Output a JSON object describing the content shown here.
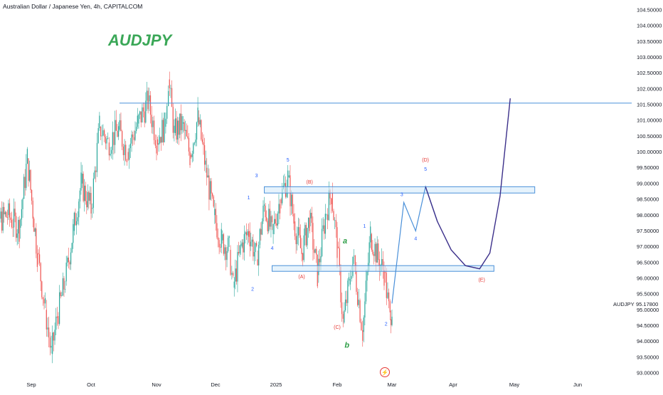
{
  "header": {
    "title": "Australian Dollar / Japanese Yen, 4h, CAPITALCOM"
  },
  "watermark": "AUDJPY",
  "current_price": {
    "symbol": "AUDJPY",
    "value": "95.17800"
  },
  "brand_icon": "lightning-bolt-icon",
  "colors": {
    "up": "#26a69a",
    "down": "#ef5350",
    "projection_blue": "#4a90d9",
    "projection_curve": "#3b2f8a",
    "level_line": "#4a90d9",
    "zone_fill": "#d6ebfa",
    "wave_blue": "#2962ff",
    "wave_red": "#e53935",
    "wave_green": "#2e9e47"
  },
  "chart_data": {
    "type": "line",
    "title": "Australian Dollar / Japanese Yen, 4h, CAPITALCOM",
    "price_axis": {
      "ticks": [
        "104.50000",
        "104.00000",
        "103.50000",
        "103.00000",
        "102.50000",
        "102.00000",
        "101.50000",
        "101.00000",
        "100.50000",
        "100.00000",
        "99.50000",
        "99.00000",
        "98.50000",
        "98.00000",
        "97.50000",
        "97.00000",
        "96.50000",
        "96.00000",
        "95.50000",
        "95.00000",
        "94.50000",
        "94.00000",
        "93.50000",
        "93.00000"
      ],
      "range": [
        93.0,
        104.5
      ]
    },
    "time_axis": {
      "ticks": [
        "Sep",
        "Oct",
        "Nov",
        "Dec",
        "2025",
        "Feb",
        "Mar",
        "Apr",
        "May",
        "Jun"
      ]
    },
    "series": [
      {
        "name": "AUDJPY",
        "values": [
          {
            "date": "2024-08-06",
            "price": 98.7
          },
          {
            "date": "2024-08-10",
            "price": 98.3
          },
          {
            "date": "2024-08-15",
            "price": 97.8
          },
          {
            "date": "2024-08-20",
            "price": 98.0
          },
          {
            "date": "2024-08-26",
            "price": 97.6
          },
          {
            "date": "2024-08-30",
            "price": 99.8
          },
          {
            "date": "2024-09-04",
            "price": 96.8
          },
          {
            "date": "2024-09-08",
            "price": 95.0
          },
          {
            "date": "2024-09-11",
            "price": 93.6
          },
          {
            "date": "2024-09-14",
            "price": 94.8
          },
          {
            "date": "2024-09-18",
            "price": 95.9
          },
          {
            "date": "2024-09-22",
            "price": 97.5
          },
          {
            "date": "2024-09-26",
            "price": 99.0
          },
          {
            "date": "2024-10-01",
            "price": 98.2
          },
          {
            "date": "2024-10-05",
            "price": 100.8
          },
          {
            "date": "2024-10-09",
            "price": 100.3
          },
          {
            "date": "2024-10-14",
            "price": 100.7
          },
          {
            "date": "2024-10-18",
            "price": 100.0
          },
          {
            "date": "2024-10-23",
            "price": 100.9
          },
          {
            "date": "2024-10-28",
            "price": 101.6
          },
          {
            "date": "2024-11-01",
            "price": 100.4
          },
          {
            "date": "2024-11-05",
            "price": 100.8
          },
          {
            "date": "2024-11-07",
            "price": 102.3
          },
          {
            "date": "2024-11-10",
            "price": 100.6
          },
          {
            "date": "2024-11-14",
            "price": 100.9
          },
          {
            "date": "2024-11-18",
            "price": 99.9
          },
          {
            "date": "2024-11-22",
            "price": 101.1
          },
          {
            "date": "2024-11-26",
            "price": 99.5
          },
          {
            "date": "2024-11-30",
            "price": 98.0
          },
          {
            "date": "2024-12-04",
            "price": 97.2
          },
          {
            "date": "2024-12-08",
            "price": 96.9
          },
          {
            "date": "2024-12-10",
            "price": 95.7
          },
          {
            "date": "2024-12-14",
            "price": 97.0
          },
          {
            "date": "2024-12-18",
            "price": 97.5
          },
          {
            "date": "2024-12-22",
            "price": 96.6
          },
          {
            "date": "2024-12-26",
            "price": 98.3
          },
          {
            "date": "2024-12-30",
            "price": 97.4
          },
          {
            "date": "2025-01-03",
            "price": 98.5
          },
          {
            "date": "2025-01-07",
            "price": 99.2
          },
          {
            "date": "2025-01-10",
            "price": 97.8
          },
          {
            "date": "2025-01-14",
            "price": 96.8
          },
          {
            "date": "2025-01-18",
            "price": 97.9
          },
          {
            "date": "2025-01-22",
            "price": 96.1
          },
          {
            "date": "2025-01-26",
            "price": 98.0
          },
          {
            "date": "2025-01-29",
            "price": 98.7
          },
          {
            "date": "2025-02-01",
            "price": 97.0
          },
          {
            "date": "2025-02-04",
            "price": 94.6
          },
          {
            "date": "2025-02-07",
            "price": 95.8
          },
          {
            "date": "2025-02-09",
            "price": 96.7
          },
          {
            "date": "2025-02-12",
            "price": 95.3
          },
          {
            "date": "2025-02-14",
            "price": 94.3
          },
          {
            "date": "2025-02-18",
            "price": 97.4
          },
          {
            "date": "2025-02-22",
            "price": 96.6
          },
          {
            "date": "2025-02-25",
            "price": 96.2
          },
          {
            "date": "2025-02-28",
            "price": 94.7
          },
          {
            "date": "2025-03-01",
            "price": 95.2
          }
        ]
      },
      {
        "name": "",
        "values": [
          {
            "date": "2025-03-01",
            "price": 95.2
          },
          {
            "date": "2025-03-07",
            "price": 98.4
          },
          {
            "date": "2025-03-13",
            "price": 97.5
          },
          {
            "date": "2025-03-18",
            "price": 98.9
          },
          {
            "date": "2025-03-24",
            "price": 97.8
          },
          {
            "date": "2025-03-31",
            "price": 96.9
          },
          {
            "date": "2025-04-07",
            "price": 96.4
          },
          {
            "date": "2025-04-14",
            "price": 96.3
          },
          {
            "date": "2025-04-19",
            "price": 96.8
          },
          {
            "date": "2025-04-24",
            "price": 98.6
          },
          {
            "date": "2025-04-29",
            "price": 101.7
          }
        ]
      }
    ],
    "horizontal_lines": [
      {
        "price": 101.55
      }
    ],
    "zones": [
      {
        "from": {
          "date": "2024-12-26",
          "price": 98.9
        },
        "to": {
          "date": "2025-05-11",
          "price": 98.7
        }
      },
      {
        "from": {
          "date": "2024-12-30",
          "price": 96.4
        },
        "to": {
          "date": "2025-04-21",
          "price": 96.25
        }
      }
    ],
    "annotations": [
      {
        "text": "1",
        "date": "2024-12-18",
        "price": 98.5
      },
      {
        "text": "2",
        "date": "2024-12-20",
        "price": 95.6
      },
      {
        "text": "3",
        "date": "2024-12-22",
        "price": 99.2
      },
      {
        "text": "4",
        "date": "2024-12-30",
        "price": 96.9
      },
      {
        "text": "5",
        "date": "2025-01-07",
        "price": 99.7
      },
      {
        "text": "(A)",
        "date": "2025-01-14",
        "price": 96.0
      },
      {
        "text": "(B)",
        "date": "2025-01-18",
        "price": 99.0
      },
      {
        "text": "(C)",
        "date": "2025-02-01",
        "price": 94.4
      },
      {
        "text": "a",
        "date": "2025-02-05",
        "price": 97.1
      },
      {
        "text": "b",
        "date": "2025-02-06",
        "price": 93.8
      },
      {
        "text": "1",
        "date": "2025-02-15",
        "price": 97.6
      },
      {
        "text": "2",
        "date": "2025-02-26",
        "price": 94.5
      },
      {
        "text": "3",
        "date": "2025-03-06",
        "price": 98.6
      },
      {
        "text": "4",
        "date": "2025-03-13",
        "price": 97.2
      },
      {
        "text": "(D)",
        "date": "2025-03-18",
        "price": 99.7
      },
      {
        "text": "5",
        "date": "2025-03-18",
        "price": 99.4
      },
      {
        "text": "(E)",
        "date": "2025-04-15",
        "price": 95.9
      }
    ],
    "grid": false,
    "ylim": [
      93.0,
      104.5
    ]
  }
}
